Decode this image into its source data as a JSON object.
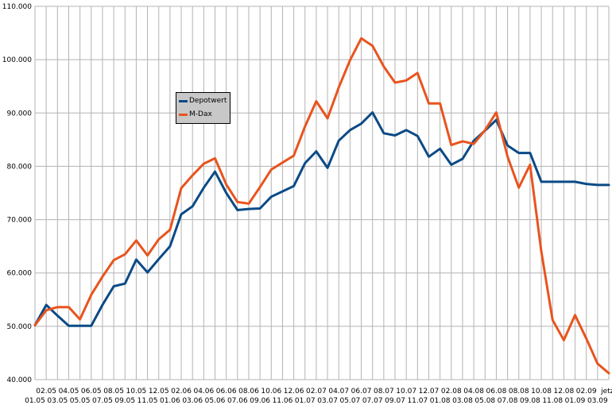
{
  "chart_data": {
    "type": "line",
    "title": "",
    "xlabel": "",
    "ylabel": "",
    "ylim": [
      40000,
      110000
    ],
    "y_ticks": [
      "40.000",
      "50.000",
      "60.000",
      "70.000",
      "80.000",
      "90.000",
      "100.000",
      "110.000"
    ],
    "grid": true,
    "legend_position": "top-left-inside",
    "categories": [
      "01.05",
      "02.05",
      "03.05",
      "04.05",
      "05.05",
      "06.05",
      "07.05",
      "08.05",
      "09.05",
      "10.05",
      "11.05",
      "12.05",
      "01.06",
      "02.06",
      "03.06",
      "04.06",
      "05.06",
      "06.06",
      "07.06",
      "08.06",
      "09.06",
      "10.06",
      "11.06",
      "12.06",
      "01.07",
      "02.07",
      "03.07",
      "04.07",
      "05.07",
      "06.07",
      "07.07",
      "08.07",
      "09.07",
      "10.07",
      "11.07",
      "12.07",
      "01.08",
      "02.08",
      "03.08",
      "04.08",
      "05.08",
      "06.08",
      "07.08",
      "08.08",
      "09.08",
      "10.08",
      "11.08",
      "12.08",
      "01.09",
      "02.09",
      "03.09",
      "jetzt"
    ],
    "series": [
      {
        "name": "Depotwert",
        "color": "#0b4a86",
        "values": [
          50200,
          54000,
          52000,
          50100,
          50100,
          50100,
          54000,
          57500,
          58000,
          62500,
          60100,
          62600,
          65000,
          71000,
          72500,
          76000,
          79000,
          75000,
          71800,
          72000,
          72100,
          74300,
          75300,
          76300,
          80600,
          82800,
          79700,
          84800,
          86800,
          88000,
          90100,
          86200,
          85800,
          86800,
          85700,
          81800,
          83300,
          80300,
          81400,
          84800,
          86700,
          88700,
          83900,
          82500,
          82500,
          77100,
          77100,
          77100,
          77100,
          76700,
          76500,
          76500
        ]
      },
      {
        "name": "M-Dax",
        "color": "#e8541e",
        "values": [
          50200,
          53000,
          53600,
          53600,
          51300,
          55900,
          59300,
          62400,
          63500,
          66100,
          63300,
          66300,
          68100,
          75900,
          78300,
          80500,
          81500,
          76600,
          73300,
          73000,
          76100,
          79400,
          80700,
          82000,
          87500,
          92200,
          89000,
          94800,
          99900,
          104000,
          102600,
          98700,
          95700,
          96100,
          97500,
          91800,
          91800,
          84000,
          84700,
          84200,
          86800,
          90100,
          81800,
          76000,
          80300,
          64000,
          51200,
          47400,
          52100,
          47700,
          43000,
          41200
        ]
      }
    ]
  }
}
